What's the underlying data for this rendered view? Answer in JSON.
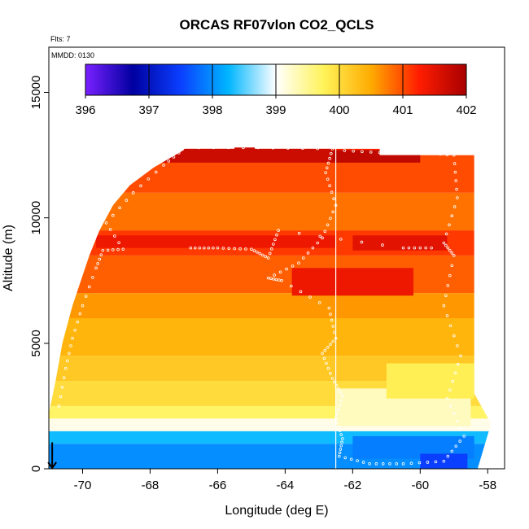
{
  "chart_data": {
    "type": "heatmap",
    "title": "ORCAS RF07vlon CO2_QCLS",
    "corner_note": "Flts: 7",
    "panel_note": "MMDD: 0130",
    "xlabel": "Longitude (deg E)",
    "ylabel": "Altitude (m)",
    "xlim": [
      -71.0,
      -57.5
    ],
    "ylim": [
      0,
      16800
    ],
    "xticks": [
      -70,
      -68,
      -66,
      -64,
      -62,
      -60,
      -58
    ],
    "xtick_labels": [
      "-70",
      "-68",
      "-66",
      "-64",
      "-62",
      "-60",
      "-58"
    ],
    "yticks": [
      0,
      5000,
      10000,
      15000
    ],
    "ytick_labels": [
      "0",
      "5000",
      "10000",
      "15000"
    ],
    "colorbar": {
      "range": [
        396,
        402
      ],
      "ticks": [
        396,
        397,
        398,
        399,
        400,
        401,
        402
      ],
      "tick_labels": [
        "396",
        "397",
        "398",
        "399",
        "400",
        "401",
        "402"
      ],
      "colors": [
        "#7a20ff",
        "#0000a0",
        "#0b3fff",
        "#00b6ff",
        "#ffffff",
        "#fff35a",
        "#ffab00",
        "#ff1d00",
        "#a80000"
      ]
    },
    "field_layers": [
      {
        "alt_low": 0,
        "alt_high": 1000,
        "value": 398.0
      },
      {
        "alt_low": 1000,
        "alt_high": 1500,
        "value": 398.3
      },
      {
        "alt_low": 1500,
        "alt_high": 2000,
        "value": 399.1
      },
      {
        "alt_low": 2000,
        "alt_high": 2500,
        "value": 399.7
      },
      {
        "alt_low": 2500,
        "alt_high": 3500,
        "value": 400.0
      },
      {
        "alt_low": 3500,
        "alt_high": 4500,
        "value": 400.2
      },
      {
        "alt_low": 4500,
        "alt_high": 6000,
        "value": 400.4
      },
      {
        "alt_low": 6000,
        "alt_high": 7000,
        "value": 400.6
      },
      {
        "alt_low": 7000,
        "alt_high": 8500,
        "value": 400.9
      },
      {
        "alt_low": 8500,
        "alt_high": 9500,
        "value": 401.1
      },
      {
        "alt_low": 9500,
        "alt_high": 11000,
        "value": 400.8
      },
      {
        "alt_low": 11000,
        "alt_high": 12500,
        "value": 401.0
      },
      {
        "alt_low": 12500,
        "alt_high": 12800,
        "value": 401.2
      }
    ],
    "field_west_boundary": [
      {
        "alt": 0,
        "lon": -71.0
      },
      {
        "alt": 2200,
        "lon": -71.0
      },
      {
        "alt": 3500,
        "lon": -70.8
      },
      {
        "alt": 5000,
        "lon": -70.6
      },
      {
        "alt": 6500,
        "lon": -70.3
      },
      {
        "alt": 8500,
        "lon": -69.8
      },
      {
        "alt": 9500,
        "lon": -69.5
      },
      {
        "alt": 10500,
        "lon": -69.1
      },
      {
        "alt": 11300,
        "lon": -68.6
      },
      {
        "alt": 12000,
        "lon": -67.9
      },
      {
        "alt": 12700,
        "lon": -67.0
      }
    ],
    "field_east_boundary": [
      {
        "alt": 0,
        "lon": -58.3
      },
      {
        "alt": 1800,
        "lon": -57.9
      },
      {
        "alt": 3000,
        "lon": -58.4
      },
      {
        "alt": 6000,
        "lon": -58.4
      },
      {
        "alt": 12500,
        "lon": -58.4
      }
    ],
    "field_top": [
      {
        "lon": -67.0,
        "alt": 12750
      },
      {
        "lon": -65.5,
        "alt": 12750
      },
      {
        "lon": -65.5,
        "alt": 12950
      },
      {
        "lon": -64.9,
        "alt": 12950
      },
      {
        "lon": -64.9,
        "alt": 12750
      },
      {
        "lon": -61.2,
        "alt": 12750
      },
      {
        "lon": -61.2,
        "alt": 12500
      },
      {
        "lon": -58.4,
        "alt": 12500
      }
    ],
    "features": [
      {
        "lon_min": -69.0,
        "lon_max": -62.6,
        "alt_min": 12200,
        "alt_max": 12800,
        "value": 401.7
      },
      {
        "lon_min": -62.6,
        "lon_max": -60.0,
        "alt_min": 12200,
        "alt_max": 12700,
        "value": 401.8
      },
      {
        "lon_min": -69.6,
        "lon_max": -62.5,
        "alt_min": 8800,
        "alt_max": 9300,
        "value": 401.4
      },
      {
        "lon_min": -62.0,
        "lon_max": -59.2,
        "alt_min": 8700,
        "alt_max": 9300,
        "value": 401.5
      },
      {
        "lon_min": -63.8,
        "lon_max": -60.2,
        "alt_min": 6900,
        "alt_max": 8000,
        "value": 401.4
      },
      {
        "lon_min": -62.5,
        "lon_max": -58.5,
        "alt_min": 1700,
        "alt_max": 3200,
        "value": 399.3
      },
      {
        "lon_min": -61.0,
        "lon_max": -58.4,
        "alt_min": 2800,
        "alt_max": 4200,
        "value": 399.8
      },
      {
        "lon_min": -62.0,
        "lon_max": -58.4,
        "alt_min": 400,
        "alt_max": 1300,
        "value": 397.9
      },
      {
        "lon_min": -60.0,
        "lon_max": -58.6,
        "alt_min": 0,
        "alt_max": 600,
        "value": 397.5
      }
    ],
    "flight_track": [
      {
        "lon": -67.0,
        "alt": 12800
      },
      {
        "lon": -64.8,
        "alt": 12800
      },
      {
        "lon": -62.6,
        "alt": 12750
      },
      {
        "lon": -62.8,
        "alt": 11800
      },
      {
        "lon": -62.5,
        "alt": 10500
      },
      {
        "lon": -62.9,
        "alt": 9200
      },
      {
        "lon": -63.6,
        "alt": 8200
      },
      {
        "lon": -64.5,
        "alt": 7600
      },
      {
        "lon": -64.1,
        "alt": 7500
      },
      {
        "lon": -62.7,
        "alt": 6400
      },
      {
        "lon": -62.5,
        "alt": 5200
      },
      {
        "lon": -62.9,
        "alt": 4600
      },
      {
        "lon": -62.6,
        "alt": 3600
      },
      {
        "lon": -62.3,
        "alt": 2900
      },
      {
        "lon": -62.5,
        "alt": 2000
      },
      {
        "lon": -62.3,
        "alt": 1200
      },
      {
        "lon": -62.4,
        "alt": 500
      },
      {
        "lon": -61.5,
        "alt": 200
      },
      {
        "lon": -60.5,
        "alt": 200
      },
      {
        "lon": -59.3,
        "alt": 300
      },
      {
        "lon": -58.7,
        "alt": 1300
      },
      {
        "lon": -59.2,
        "alt": 2800
      },
      {
        "lon": -58.8,
        "alt": 4500
      },
      {
        "lon": -59.3,
        "alt": 6500
      },
      {
        "lon": -59.0,
        "alt": 8500
      },
      {
        "lon": -59.3,
        "alt": 9000
      },
      {
        "lon": -58.9,
        "alt": 10800
      },
      {
        "lon": -59.0,
        "alt": 12500
      },
      {
        "lon": -60.0,
        "alt": 12600
      },
      {
        "lon": -61.2,
        "alt": 12600
      },
      {
        "lon": -62.5,
        "alt": 12700
      }
    ],
    "flight_track_west": [
      {
        "lon": -70.7,
        "alt": 2500
      },
      {
        "lon": -70.5,
        "alt": 4000
      },
      {
        "lon": -70.3,
        "alt": 5200
      },
      {
        "lon": -70.0,
        "alt": 6500
      },
      {
        "lon": -69.6,
        "alt": 8000
      },
      {
        "lon": -69.4,
        "alt": 8700
      },
      {
        "lon": -68.8,
        "alt": 8750
      },
      {
        "lon": -69.3,
        "alt": 9800
      },
      {
        "lon": -68.5,
        "alt": 11000
      },
      {
        "lon": -67.6,
        "alt": 12100
      },
      {
        "lon": -67.0,
        "alt": 12750
      }
    ],
    "flight_track_mid": [
      {
        "lon": -66.8,
        "alt": 8800
      },
      {
        "lon": -66.0,
        "alt": 8800
      },
      {
        "lon": -65.0,
        "alt": 8750
      },
      {
        "lon": -64.5,
        "alt": 8400
      },
      {
        "lon": -64.2,
        "alt": 9500
      },
      {
        "lon": -60.5,
        "alt": 8800
      },
      {
        "lon": -59.5,
        "alt": 8800
      }
    ],
    "vertical_line": {
      "lon": -62.5,
      "alt_min": 0,
      "alt_max": 12800
    },
    "arrow_marker": {
      "lon": -70.9,
      "alt_from": 600,
      "alt_to": 0
    }
  }
}
